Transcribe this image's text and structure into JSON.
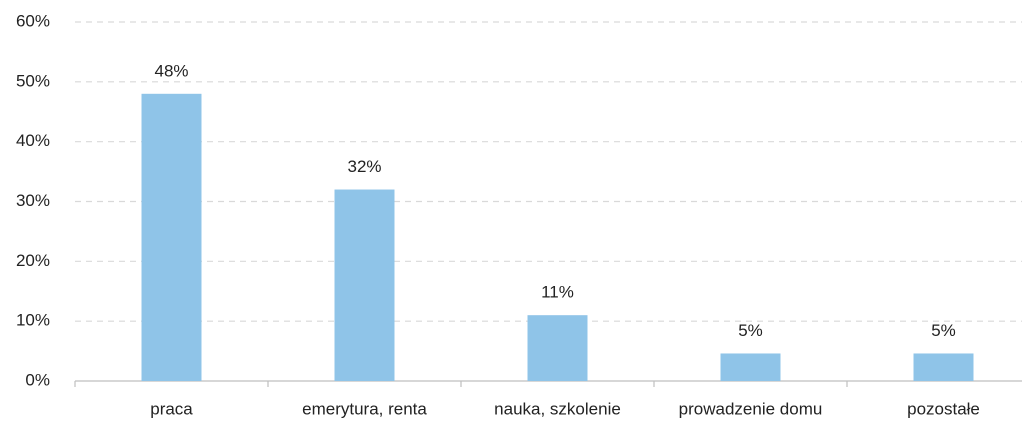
{
  "chart_data": {
    "type": "bar",
    "categories": [
      "praca",
      "emerytura, renta",
      "nauka, szkolenie",
      "prowadzenie domu",
      "pozostałe"
    ],
    "values": [
      48,
      32,
      11,
      4.6,
      4.6
    ],
    "value_labels": [
      "48%",
      "32%",
      "11%",
      "5%",
      "5%"
    ],
    "color": "#8fc4e8",
    "ylim": [
      0,
      60
    ],
    "yticks": [
      {
        "value": 0,
        "label": "0%"
      },
      {
        "value": 10,
        "label": "10%"
      },
      {
        "value": 20,
        "label": "20%"
      },
      {
        "value": 30,
        "label": "30%"
      },
      {
        "value": 40,
        "label": "40%"
      },
      {
        "value": 50,
        "label": "50%"
      },
      {
        "value": 60,
        "label": "60%"
      }
    ],
    "grid": true
  }
}
